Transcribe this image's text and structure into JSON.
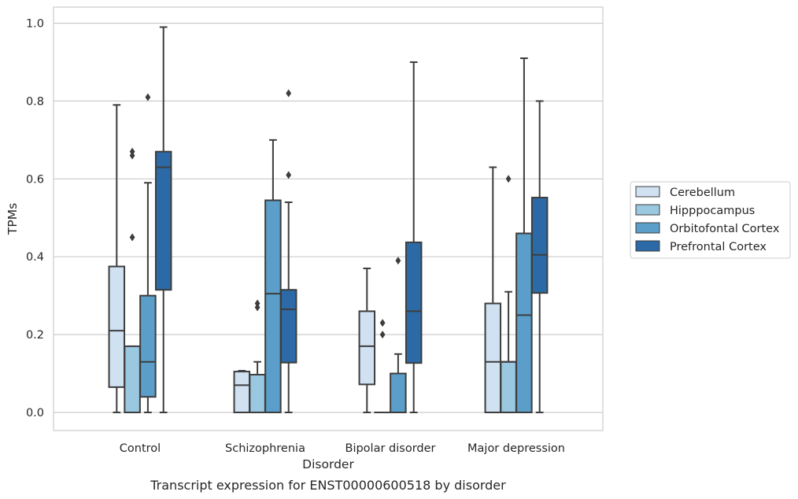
{
  "chart_data": {
    "type": "box",
    "xlabel": "Disorder",
    "ylabel": "TPMs",
    "caption": "Transcript expression for ENST00000600518 by disorder",
    "ylim": [
      -0.05,
      1.04
    ],
    "yticks": [
      0.0,
      0.2,
      0.4,
      0.6,
      0.8,
      1.0
    ],
    "ytick_labels": [
      "0.0",
      "0.2",
      "0.4",
      "0.6",
      "0.8",
      "1.0"
    ],
    "grid": "horizontal",
    "legend_position": "right",
    "categories": [
      "Control",
      "Schizophrenia",
      "Bipolar disorder",
      "Major depression"
    ],
    "series": [
      {
        "name": "Cerebellum",
        "color": "#d0e1f2",
        "boxes": [
          {
            "q1": 0.065,
            "median": 0.21,
            "q3": 0.375,
            "whisker_low": 0.0,
            "whisker_high": 0.79,
            "outliers": []
          },
          {
            "q1": 0.0,
            "median": 0.07,
            "q3": 0.105,
            "whisker_low": 0.0,
            "whisker_high": 0.107,
            "outliers": []
          },
          {
            "q1": 0.072,
            "median": 0.17,
            "q3": 0.26,
            "whisker_low": 0.0,
            "whisker_high": 0.37,
            "outliers": []
          },
          {
            "q1": 0.0,
            "median": 0.13,
            "q3": 0.28,
            "whisker_low": 0.0,
            "whisker_high": 0.63,
            "outliers": []
          }
        ]
      },
      {
        "name": "Hipppocampus",
        "color": "#9ac8e0",
        "boxes": [
          {
            "q1": 0.0,
            "median": 0.0,
            "q3": 0.17,
            "whisker_low": 0.0,
            "whisker_high": 0.17,
            "outliers": [
              0.45,
              0.66,
              0.67
            ]
          },
          {
            "q1": 0.0,
            "median": 0.0,
            "q3": 0.097,
            "whisker_low": 0.0,
            "whisker_high": 0.13,
            "outliers": [
              0.27,
              0.28
            ]
          },
          {
            "q1": 0.0,
            "median": 0.0,
            "q3": 0.0,
            "whisker_low": 0.0,
            "whisker_high": 0.0,
            "outliers": [
              0.2,
              0.23
            ]
          },
          {
            "q1": 0.0,
            "median": 0.13,
            "q3": 0.13,
            "whisker_low": 0.0,
            "whisker_high": 0.31,
            "outliers": [
              0.6
            ]
          }
        ]
      },
      {
        "name": "Orbitofontal Cortex",
        "color": "#5a9ec9",
        "boxes": [
          {
            "q1": 0.04,
            "median": 0.13,
            "q3": 0.3,
            "whisker_low": 0.0,
            "whisker_high": 0.59,
            "outliers": [
              0.81
            ]
          },
          {
            "q1": 0.0,
            "median": 0.305,
            "q3": 0.545,
            "whisker_low": 0.0,
            "whisker_high": 0.7,
            "outliers": []
          },
          {
            "q1": 0.0,
            "median": 0.0,
            "q3": 0.1,
            "whisker_low": 0.0,
            "whisker_high": 0.15,
            "outliers": [
              0.39
            ]
          },
          {
            "q1": 0.0,
            "median": 0.25,
            "q3": 0.46,
            "whisker_low": 0.0,
            "whisker_high": 0.91,
            "outliers": []
          }
        ]
      },
      {
        "name": "Prefrontal Cortex",
        "color": "#2b6aa6",
        "boxes": [
          {
            "q1": 0.315,
            "median": 0.63,
            "q3": 0.67,
            "whisker_low": 0.0,
            "whisker_high": 0.99,
            "outliers": []
          },
          {
            "q1": 0.128,
            "median": 0.265,
            "q3": 0.315,
            "whisker_low": 0.0,
            "whisker_high": 0.54,
            "outliers": [
              0.61,
              0.82
            ]
          },
          {
            "q1": 0.127,
            "median": 0.26,
            "q3": 0.437,
            "whisker_low": 0.0,
            "whisker_high": 0.9,
            "outliers": []
          },
          {
            "q1": 0.307,
            "median": 0.405,
            "q3": 0.552,
            "whisker_low": 0.0,
            "whisker_high": 0.8,
            "outliers": []
          }
        ]
      }
    ]
  },
  "colors": {
    "grid": "#cccccc",
    "frame": "#cccccc",
    "box_edge": "#3d3d3d",
    "background": "#ffffff"
  }
}
